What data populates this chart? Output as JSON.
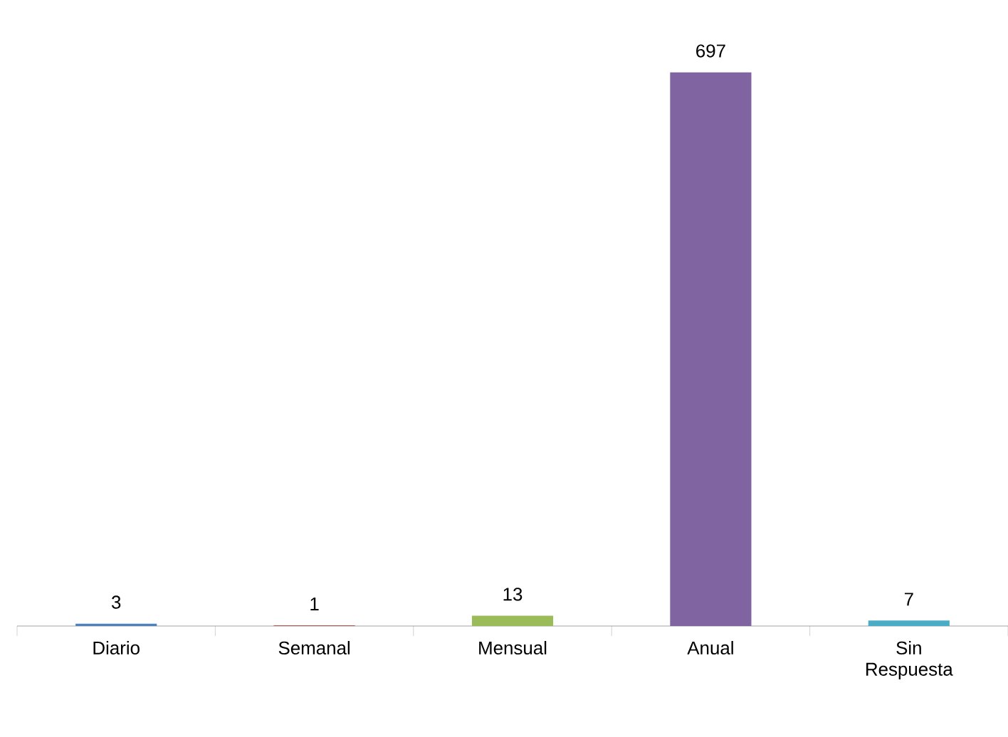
{
  "chart_data": {
    "type": "bar",
    "categories": [
      "Diario",
      "Semanal",
      "Mensual",
      "Anual",
      "Sin Respuesta"
    ],
    "values": [
      3,
      1,
      13,
      697,
      7
    ],
    "colors": [
      "#4f81bd",
      "#c0504d",
      "#9bbb59",
      "#8064a2",
      "#4bacc6"
    ],
    "data_labels": true
  }
}
